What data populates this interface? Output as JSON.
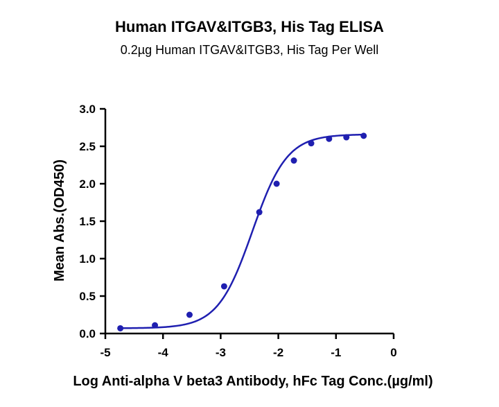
{
  "chart_data": {
    "type": "scatter",
    "title": "Human ITGAV&ITGB3, His Tag ELISA",
    "subtitle": "0.2µg Human ITGAV&ITGB3, His Tag Per Well",
    "xlabel": "Log Anti-alpha V beta3 Antibody, hFc Tag Conc.(µg/ml)",
    "ylabel": "Mean Abs.(OD450)",
    "xlim": [
      -5,
      0
    ],
    "ylim": [
      0,
      3.0
    ],
    "x_ticks": [
      "-5",
      "-4",
      "-3",
      "-2",
      "-1",
      "0"
    ],
    "y_ticks": [
      "0.0",
      "0.5",
      "1.0",
      "1.5",
      "2.0",
      "2.5",
      "3.0"
    ],
    "series_color": "#1f1fb0",
    "points": [
      {
        "x": -4.74,
        "y": 0.07
      },
      {
        "x": -4.14,
        "y": 0.11
      },
      {
        "x": -3.54,
        "y": 0.25
      },
      {
        "x": -2.94,
        "y": 0.63
      },
      {
        "x": -2.33,
        "y": 1.62
      },
      {
        "x": -2.03,
        "y": 2.0
      },
      {
        "x": -1.73,
        "y": 2.31
      },
      {
        "x": -1.43,
        "y": 2.54
      },
      {
        "x": -1.12,
        "y": 2.6
      },
      {
        "x": -0.82,
        "y": 2.62
      },
      {
        "x": -0.52,
        "y": 2.64
      }
    ],
    "fit": {
      "bottom": 0.07,
      "top": 2.66,
      "logEC50": -2.45,
      "hill": 1.45
    },
    "grid": false,
    "legend": "none"
  }
}
